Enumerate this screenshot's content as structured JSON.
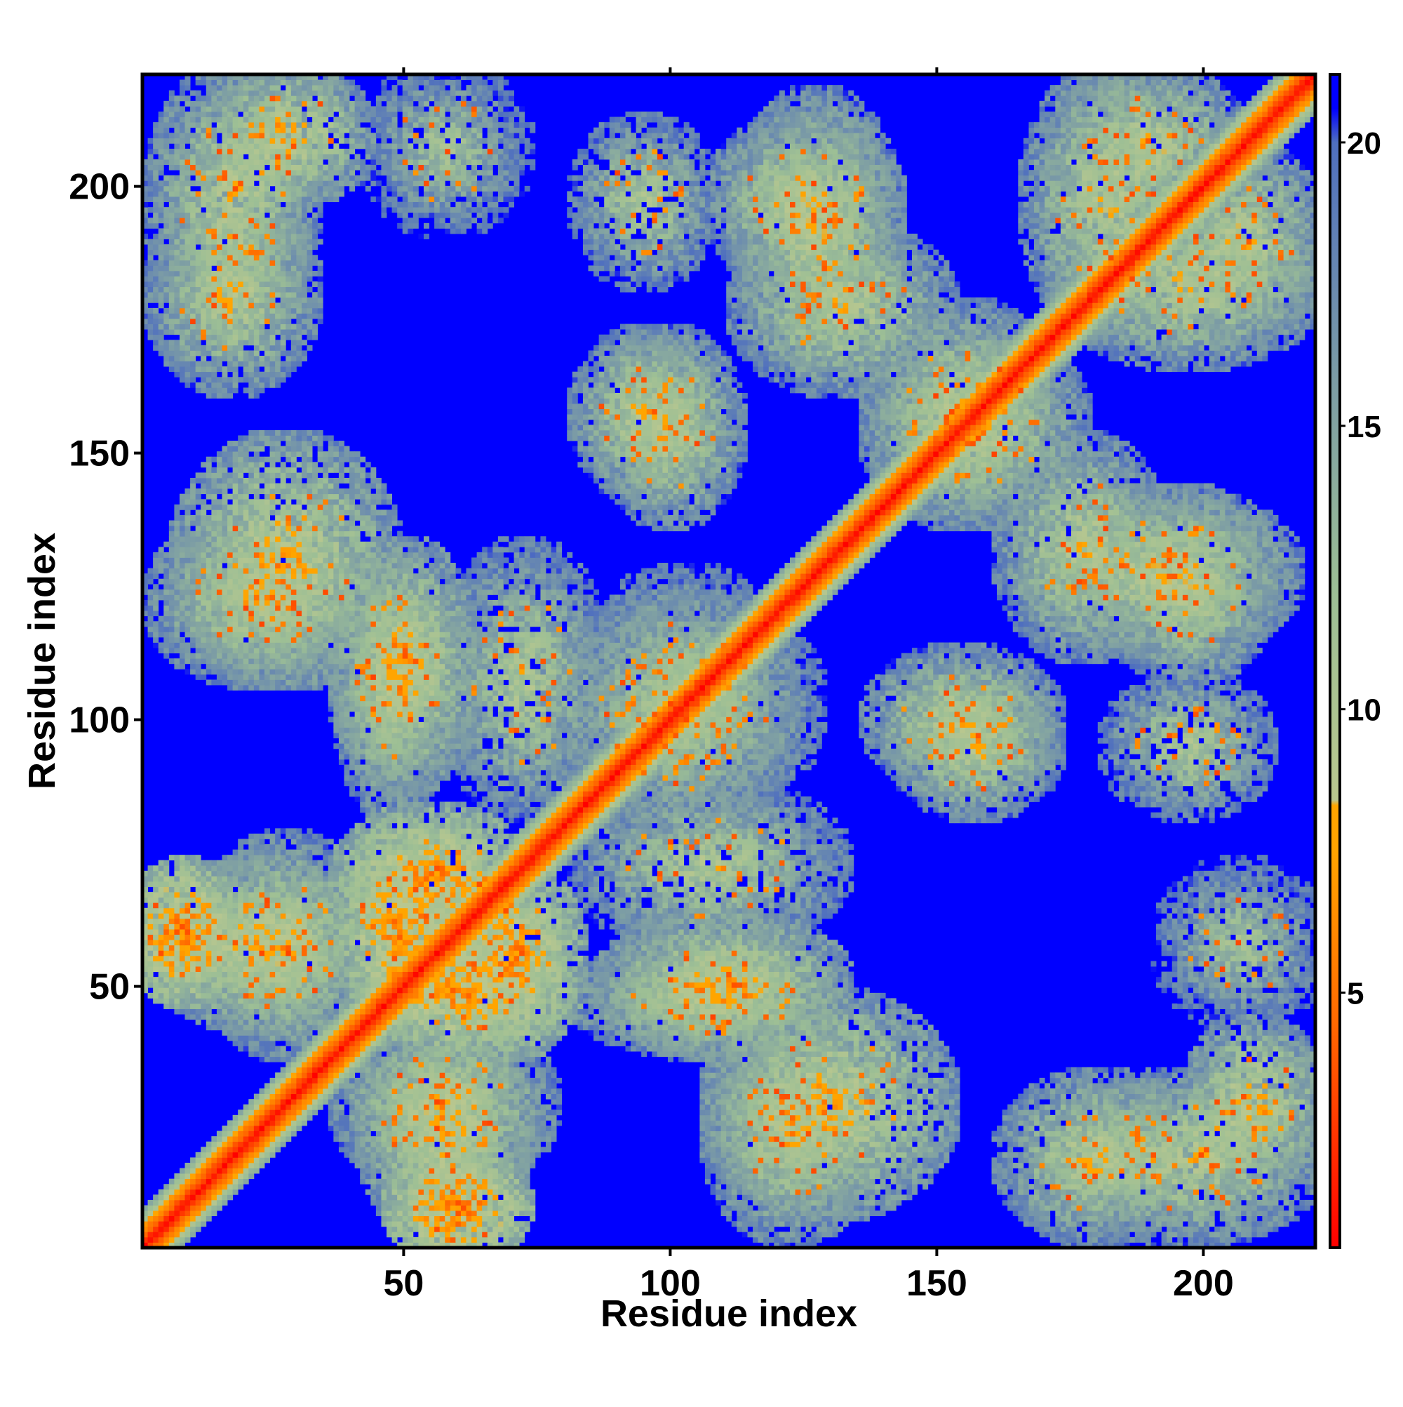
{
  "chart_data": {
    "type": "heatmap",
    "title": "",
    "xlabel": "Residue index",
    "ylabel": "Residue index",
    "n_residues": 221,
    "xlim": [
      1,
      221
    ],
    "ylim": [
      1,
      221
    ],
    "x_ticks": [
      50,
      100,
      150,
      200
    ],
    "y_ticks": [
      50,
      100,
      150,
      200
    ],
    "colorbar": {
      "ticks": [
        5,
        10,
        15,
        20
      ],
      "range": [
        0.5,
        21.2
      ],
      "stops": [
        {
          "value": 0.5,
          "color": "#ff0000"
        },
        {
          "value": 4.5,
          "color": "#ff6a00"
        },
        {
          "value": 7.5,
          "color": "#ffa500"
        },
        {
          "value": 8.3,
          "color": "#ffa500"
        },
        {
          "value": 8.4,
          "color": "#b9c78f"
        },
        {
          "value": 12.0,
          "color": "#9dbf95"
        },
        {
          "value": 16.0,
          "color": "#7a9aa6"
        },
        {
          "value": 20.0,
          "color": "#4f6fbf"
        },
        {
          "value": 20.6,
          "color": "#0000ff"
        },
        {
          "value": 21.2,
          "color": "#0000ff"
        }
      ]
    },
    "background_value": 21,
    "diagonal_band_width": 7,
    "contact_clusters": [
      {
        "x": [
          5,
          30
        ],
        "y": [
          175,
          220
        ],
        "peak": 9
      },
      {
        "x": [
          10,
          45
        ],
        "y": [
          110,
          150
        ],
        "peak": 8
      },
      {
        "x": [
          1,
          15
        ],
        "y": [
          50,
          70
        ],
        "peak": 5
      },
      {
        "x": [
          15,
          40
        ],
        "y": [
          40,
          75
        ],
        "peak": 9
      },
      {
        "x": [
          40,
          58
        ],
        "y": [
          45,
          75
        ],
        "peak": 6
      },
      {
        "x": [
          60,
          80
        ],
        "y": [
          40,
          70
        ],
        "peak": 6
      },
      {
        "x": [
          45,
          70
        ],
        "y": [
          5,
          40
        ],
        "peak": 8
      },
      {
        "x": [
          40,
          55
        ],
        "y": [
          85,
          130
        ],
        "peak": 9
      },
      {
        "x": [
          60,
          85
        ],
        "y": [
          85,
          130
        ],
        "peak": 10
      },
      {
        "x": [
          85,
          120
        ],
        "y": [
          80,
          125
        ],
        "peak": 10
      },
      {
        "x": [
          90,
          110
        ],
        "y": [
          140,
          170
        ],
        "peak": 9
      },
      {
        "x": [
          115,
          140
        ],
        "y": [
          170,
          215
        ],
        "peak": 9
      },
      {
        "x": [
          90,
          130
        ],
        "y": [
          40,
          60
        ],
        "peak": 8
      },
      {
        "x": [
          110,
          135
        ],
        "y": [
          5,
          40
        ],
        "peak": 9
      },
      {
        "x": [
          140,
          170
        ],
        "y": [
          140,
          175
        ],
        "peak": 9
      },
      {
        "x": [
          165,
          190
        ],
        "y": [
          115,
          150
        ],
        "peak": 9
      },
      {
        "x": [
          185,
          210
        ],
        "y": [
          110,
          140
        ],
        "peak": 9
      },
      {
        "x": [
          145,
          170
        ],
        "y": [
          85,
          105
        ],
        "peak": 9
      },
      {
        "x": [
          185,
          210
        ],
        "y": [
          85,
          105
        ],
        "peak": 10
      },
      {
        "x": [
          170,
          195
        ],
        "y": [
          175,
          220
        ],
        "peak": 9
      },
      {
        "x": [
          195,
          220
        ],
        "y": [
          175,
          205
        ],
        "peak": 9
      },
      {
        "x": [
          200,
          220
        ],
        "y": [
          15,
          40
        ],
        "peak": 8
      },
      {
        "x": [
          165,
          195
        ],
        "y": [
          5,
          30
        ],
        "peak": 9
      },
      {
        "x": [
          195,
          220
        ],
        "y": [
          45,
          70
        ],
        "peak": 11
      }
    ],
    "grid": false,
    "legend": "colorbar right"
  }
}
